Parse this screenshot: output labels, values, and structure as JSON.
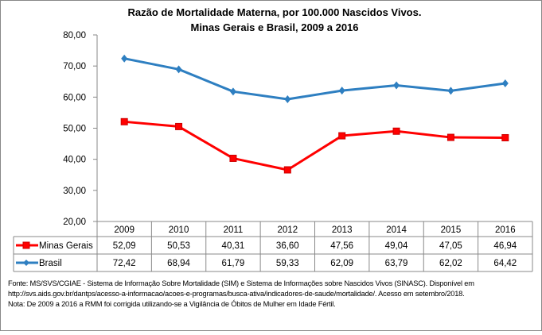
{
  "chart_data": {
    "type": "line",
    "title": "Razão de Mortalidade Materna, por 100.000 Nascidos Vivos.",
    "subtitle": "Minas Gerais e Brasil, 2009 a 2016",
    "categories": [
      "2009",
      "2010",
      "2011",
      "2012",
      "2013",
      "2014",
      "2015",
      "2016"
    ],
    "series": [
      {
        "name": "Minas Gerais",
        "color": "#ff0000",
        "marker": "square",
        "values": [
          52.09,
          50.53,
          40.31,
          36.6,
          47.56,
          49.04,
          47.05,
          46.94
        ],
        "labels": [
          "52,09",
          "50,53",
          "40,31",
          "36,60",
          "47,56",
          "49,04",
          "47,05",
          "46,94"
        ]
      },
      {
        "name": "Brasil",
        "color": "#2e7fc1",
        "marker": "diamond",
        "values": [
          72.42,
          68.94,
          61.79,
          59.33,
          62.09,
          63.79,
          62.02,
          64.42
        ],
        "labels": [
          "72,42",
          "68,94",
          "61,79",
          "59,33",
          "62,09",
          "63,79",
          "62,02",
          "64,42"
        ]
      }
    ],
    "ylim": [
      20,
      80
    ],
    "yticks": [
      "20,00",
      "30,00",
      "40,00",
      "50,00",
      "60,00",
      "70,00",
      "80,00"
    ],
    "grid": false,
    "legend": "data-table"
  },
  "notes": [
    "Fonte: MS/SVS/CGIAE - Sistema de Informação Sobre Mortalidade (SIM) e Sistema de Informações sobre Nascidos Vivos (SINASC). Disponível em",
    "http://svs.aids.gov.br/dantps/acesso-a-informacao/acoes-e-programas/busca-ativa/indicadores-de-saude/mortalidade/. Acesso em setembro/2018.",
    "Nota: De 2009 a 2016 a RMM foi corrigida utilizando-se a Vigilância de Óbitos de Mulher em Idade Fértil."
  ]
}
